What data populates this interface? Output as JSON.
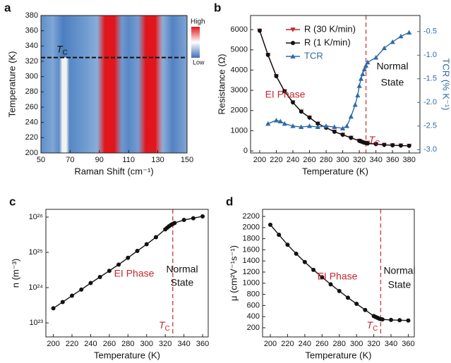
{
  "chart_data": [
    {
      "type": "heatmap",
      "panel": "a",
      "xlabel": "Raman Shift (cm⁻¹)",
      "ylabel": "Temperature (K)",
      "xlim": [
        50,
        150
      ],
      "xticks": [
        50,
        70,
        90,
        110,
        130,
        150
      ],
      "ylim": [
        200,
        380
      ],
      "yticks": [
        200,
        220,
        240,
        260,
        280,
        300,
        320,
        340,
        360,
        380
      ],
      "bands": [
        {
          "x": 66,
          "color": "#f2f2f2"
        },
        {
          "x": 97,
          "color": "#e0161c"
        },
        {
          "x": 125,
          "color": "#e0161c"
        }
      ],
      "colorbar": {
        "high": "High",
        "low": "Low",
        "colors": [
          "#e0161c",
          "#ffffff",
          "#3d6fb5"
        ]
      },
      "tc": 325,
      "tc_label": {
        "main": "T",
        "sub": "C"
      }
    },
    {
      "type": "line",
      "panel": "b",
      "xlabel": "Temperature (K)",
      "ylabel": "Resistance (Ω)",
      "y2label": "TCR (% K⁻¹)",
      "xlim": [
        189,
        393
      ],
      "xticks": [
        200,
        220,
        240,
        260,
        280,
        300,
        320,
        340,
        360,
        380
      ],
      "ylim": [
        -100,
        6700
      ],
      "yticks": [
        0,
        1000,
        2000,
        3000,
        4000,
        5000,
        6000
      ],
      "y2lim": [
        -3.07,
        -0.16
      ],
      "y2ticks": [
        -0.5,
        {
          "value": -1,
          "label": "-1.0"
        },
        -1.5,
        {
          "value": -2,
          "label": "-2.0"
        },
        -2.5,
        {
          "value": -3,
          "label": "-3.0"
        }
      ],
      "legend": "upper left",
      "series": [
        {
          "name": "R (30 K/min)",
          "color": "#c0282e",
          "marker": "triangle-down",
          "x": [
            200,
            210,
            220,
            230,
            240,
            250,
            260,
            270,
            280,
            290,
            300,
            310,
            320,
            330,
            340,
            350,
            360,
            370,
            380
          ],
          "values": [
            5950,
            4750,
            3700,
            2950,
            2400,
            1950,
            1650,
            1350,
            1150,
            950,
            800,
            650,
            500,
            400,
            340,
            300,
            280,
            265,
            255
          ]
        },
        {
          "name": "R (1 K/min)",
          "color": "#111111",
          "marker": "circle",
          "x": [
            200,
            210,
            220,
            230,
            240,
            250,
            260,
            270,
            280,
            290,
            300,
            310,
            320,
            322,
            324,
            326,
            328,
            330,
            340,
            350,
            360,
            370,
            380
          ],
          "values": [
            5950,
            4750,
            3700,
            2950,
            2400,
            1950,
            1650,
            1350,
            1150,
            950,
            800,
            650,
            500,
            470,
            440,
            410,
            390,
            370,
            340,
            300,
            280,
            265,
            255
          ]
        },
        {
          "name": "TCR",
          "color": "#2e6aa8",
          "marker": "triangle-up",
          "axis": "y2",
          "x": [
            210,
            220,
            225,
            230,
            240,
            250,
            260,
            270,
            280,
            290,
            300,
            305,
            310,
            315,
            318,
            320,
            322,
            324,
            326,
            328,
            330,
            340,
            350,
            360,
            370,
            380
          ],
          "values": [
            -2.45,
            -2.38,
            -2.4,
            -2.45,
            -2.5,
            -2.52,
            -2.5,
            -2.52,
            -2.5,
            -2.52,
            -2.55,
            -2.5,
            -2.3,
            -2.05,
            -1.85,
            -1.65,
            -1.5,
            -1.4,
            -1.3,
            -1.22,
            -1.15,
            -1.05,
            -0.85,
            -0.72,
            -0.6,
            -0.52
          ]
        }
      ],
      "tc": 328,
      "tc_label": {
        "main": "T",
        "sub": "C"
      },
      "annotations": [
        "EI Phase",
        "Normal",
        "State"
      ]
    },
    {
      "type": "line",
      "panel": "c",
      "xlabel": "Temperature (K)",
      "ylabel": "n (m⁻³)",
      "ylog": true,
      "xlim": [
        192,
        366
      ],
      "xticks": [
        200,
        220,
        240,
        260,
        280,
        300,
        320,
        340,
        360
      ],
      "ylim": [
        4e+22,
        1.66e+26
      ],
      "yticks": [
        {
          "value": 1e+23,
          "label": "10²³"
        },
        {
          "value": 1e+24,
          "label": "10²⁴"
        },
        {
          "value": 1e+25,
          "label": "10²⁵"
        },
        {
          "value": 1e+26,
          "label": "10²⁶"
        }
      ],
      "series": [
        {
          "color": "#111111",
          "marker": "circle",
          "x": [
            200,
            210,
            220,
            230,
            240,
            250,
            260,
            270,
            280,
            290,
            300,
            310,
            320,
            322,
            324,
            326,
            328,
            330,
            340,
            350,
            360
          ],
          "values": [
            2.6e+23,
            3.9e+23,
            5.9e+23,
            8.8e+23,
            1.35e+24,
            2e+24,
            3e+24,
            4.5e+24,
            7e+24,
            1.1e+25,
            1.7e+25,
            2.7e+25,
            4.5e+25,
            5e+25,
            5.5e+25,
            6e+25,
            6.4e+25,
            6.8e+25,
            8.3e+25,
            9.3e+25,
            1.05e+26
          ]
        }
      ],
      "tc": 328,
      "tc_label": {
        "main": "T",
        "sub": "C"
      },
      "annotations": [
        "EI Phase",
        "Normal",
        "State"
      ]
    },
    {
      "type": "line",
      "panel": "d",
      "xlabel": "Temperature (K)",
      "ylabel": "μ (cm²V⁻¹s⁻¹)",
      "xlim": [
        191,
        367
      ],
      "xticks": [
        200,
        220,
        240,
        260,
        280,
        300,
        320,
        340,
        360
      ],
      "ylim": [
        35,
        2327
      ],
      "yticks": [
        200,
        400,
        600,
        800,
        1000,
        1200,
        1400,
        1600,
        1800,
        2000,
        2200
      ],
      "series": [
        {
          "color": "#111111",
          "marker": "circle",
          "x": [
            200,
            210,
            220,
            230,
            240,
            250,
            260,
            270,
            280,
            290,
            300,
            310,
            320,
            322,
            324,
            326,
            328,
            330,
            340,
            350,
            360
          ],
          "values": [
            2050,
            1870,
            1690,
            1530,
            1380,
            1240,
            1110,
            980,
            860,
            740,
            630,
            520,
            410,
            395,
            380,
            365,
            355,
            350,
            340,
            335,
            330
          ]
        }
      ],
      "tc": 328,
      "tc_label": {
        "main": "T",
        "sub": "C"
      },
      "annotations": [
        "EI Phase",
        "Normal",
        "State"
      ]
    }
  ]
}
